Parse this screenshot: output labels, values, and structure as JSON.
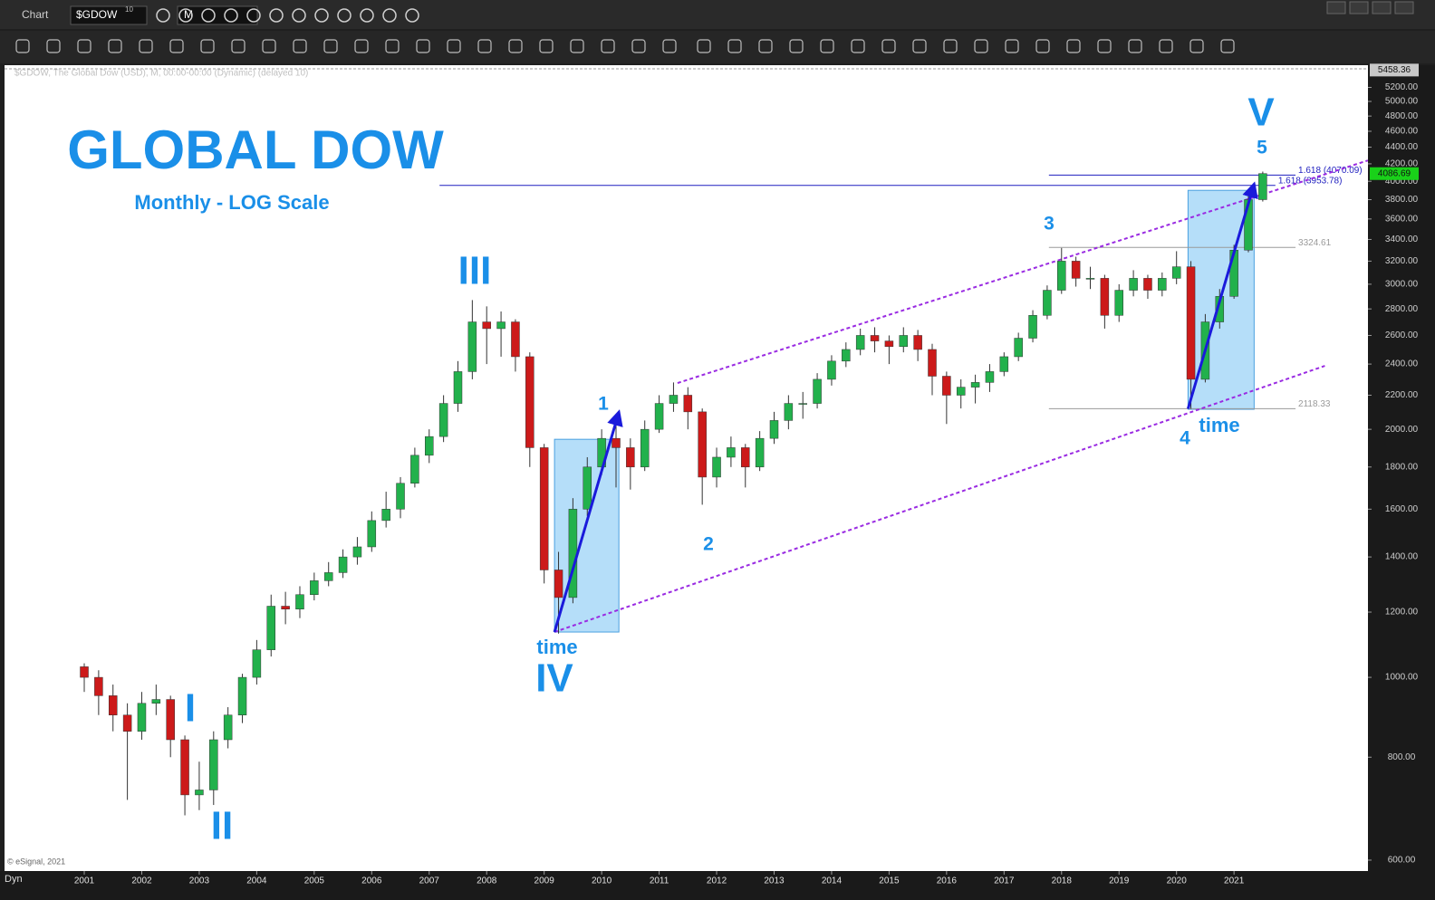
{
  "ui": {
    "window_title": "Chart",
    "symbol": "$GDOW",
    "symbol_badge": "10",
    "interval": "M",
    "status": "Dyn"
  },
  "chart_data": {
    "type": "candlestick",
    "title": "GLOBAL DOW",
    "subtitle": "Monthly - LOG Scale",
    "header": "$GDOW, The Global Dow (USD), M, 00:00-00:00 (Dynamic) (delayed 10)",
    "credit": "© eSignal, 2021",
    "log_scale": true,
    "grid": false,
    "up_color": "#22b14c",
    "down_color": "#cc1a1a",
    "xlim": [
      1999.613,
      2023.33
    ],
    "ylim": [
      582,
      5533
    ],
    "xticks": [
      2001,
      2002,
      2003,
      2004,
      2005,
      2006,
      2007,
      2008,
      2009,
      2010,
      2011,
      2012,
      2013,
      2014,
      2015,
      2016,
      2017,
      2018,
      2019,
      2020,
      2021
    ],
    "yticks": [
      {
        "value": 600,
        "label": "600.00"
      },
      {
        "value": 800,
        "label": "800.00"
      },
      {
        "value": 1000,
        "label": "1000.00"
      },
      {
        "value": 1200,
        "label": "1200.00"
      },
      {
        "value": 1400,
        "label": "1400.00"
      },
      {
        "value": 1600,
        "label": "1600.00"
      },
      {
        "value": 1800,
        "label": "1800.00"
      },
      {
        "value": 2000,
        "label": "2000.00"
      },
      {
        "value": 2200,
        "label": "2200.00"
      },
      {
        "value": 2400,
        "label": "2400.00"
      },
      {
        "value": 2600,
        "label": "2600.00"
      },
      {
        "value": 2800,
        "label": "2800.00"
      },
      {
        "value": 3000,
        "label": "3000.00"
      },
      {
        "value": 3200,
        "label": "3200.00"
      },
      {
        "value": 3400,
        "label": "3400.00"
      },
      {
        "value": 3600,
        "label": "3600.00"
      },
      {
        "value": 3800,
        "label": "3800.00"
      },
      {
        "value": 4000,
        "label": "4000.00"
      },
      {
        "value": 4200,
        "label": "4200.00"
      },
      {
        "value": 4400,
        "label": "4400.00"
      },
      {
        "value": 4600,
        "label": "4600.00"
      },
      {
        "value": 4800,
        "label": "4800.00"
      },
      {
        "value": 5000,
        "label": "5000.00"
      },
      {
        "value": 5200,
        "label": "5200.00"
      }
    ],
    "x": [
      2001,
      2001.25,
      2001.5,
      2001.75,
      2002,
      2002.25,
      2002.5,
      2002.75,
      2003,
      2003.25,
      2003.5,
      2003.75,
      2004,
      2004.25,
      2004.5,
      2004.75,
      2005,
      2005.25,
      2005.5,
      2005.75,
      2006,
      2006.25,
      2006.5,
      2006.75,
      2007,
      2007.25,
      2007.5,
      2007.75,
      2008,
      2008.25,
      2008.5,
      2008.75,
      2009,
      2009.25,
      2009.5,
      2009.75,
      2010,
      2010.25,
      2010.5,
      2010.75,
      2011,
      2011.25,
      2011.5,
      2011.75,
      2012,
      2012.25,
      2012.5,
      2012.75,
      2013,
      2013.25,
      2013.5,
      2013.75,
      2014,
      2014.25,
      2014.5,
      2014.75,
      2015,
      2015.25,
      2015.5,
      2015.75,
      2016,
      2016.25,
      2016.5,
      2016.75,
      2017,
      2017.25,
      2017.5,
      2017.75,
      2018,
      2018.25,
      2018.5,
      2018.75,
      2019,
      2019.25,
      2019.5,
      2019.75,
      2020,
      2020.25,
      2020.5,
      2020.75,
      2021,
      2021.25,
      2021.5
    ],
    "open": [
      1030,
      1000,
      950,
      900,
      860,
      930,
      940,
      840,
      720,
      730,
      840,
      900,
      1000,
      1080,
      1220,
      1210,
      1260,
      1310,
      1340,
      1400,
      1440,
      1550,
      1600,
      1720,
      1860,
      1960,
      2150,
      2350,
      2700,
      2650,
      2700,
      2450,
      1900,
      1350,
      1250,
      1600,
      1800,
      1950,
      1900,
      1800,
      2000,
      2150,
      2200,
      2100,
      1750,
      1850,
      1900,
      1800,
      1950,
      2050,
      2150,
      2150,
      2300,
      2420,
      2500,
      2600,
      2560,
      2520,
      2600,
      2500,
      2320,
      2200,
      2250,
      2280,
      2350,
      2450,
      2580,
      2750,
      2950,
      3200,
      3050,
      3050,
      2750,
      2950,
      3050,
      2950,
      3050,
      3150,
      2300,
      2700,
      2900,
      3300,
      3800
    ],
    "high": [
      1040,
      1020,
      980,
      930,
      960,
      980,
      950,
      850,
      790,
      860,
      920,
      1010,
      1110,
      1260,
      1270,
      1290,
      1340,
      1380,
      1430,
      1480,
      1590,
      1680,
      1750,
      1900,
      2000,
      2200,
      2420,
      2870,
      2820,
      2780,
      2720,
      2480,
      1920,
      1420,
      1650,
      1850,
      2000,
      2050,
      1950,
      2050,
      2200,
      2280,
      2250,
      2120,
      1900,
      1960,
      1920,
      1990,
      2100,
      2200,
      2220,
      2340,
      2460,
      2550,
      2650,
      2660,
      2600,
      2660,
      2640,
      2540,
      2350,
      2300,
      2330,
      2400,
      2480,
      2620,
      2790,
      2990,
      3320,
      3240,
      3150,
      3080,
      3000,
      3120,
      3080,
      3100,
      3290,
      3200,
      2760,
      2960,
      3350,
      3850,
      4110
    ],
    "low": [
      960,
      900,
      860,
      710,
      840,
      900,
      800,
      680,
      690,
      700,
      820,
      880,
      980,
      1060,
      1160,
      1180,
      1240,
      1290,
      1320,
      1370,
      1420,
      1520,
      1560,
      1700,
      1820,
      1930,
      2100,
      2300,
      2400,
      2450,
      2350,
      1800,
      1300,
      1130,
      1230,
      1570,
      1760,
      1700,
      1690,
      1780,
      1980,
      2100,
      2000,
      1620,
      1700,
      1800,
      1700,
      1780,
      1920,
      2000,
      2060,
      2120,
      2260,
      2380,
      2460,
      2480,
      2400,
      2480,
      2420,
      2200,
      2030,
      2120,
      2150,
      2220,
      2320,
      2420,
      2550,
      2720,
      2920,
      2980,
      2960,
      2650,
      2700,
      2900,
      2880,
      2900,
      3000,
      2118,
      2280,
      2650,
      2880,
      3280,
      3780
    ],
    "close": [
      1000,
      950,
      900,
      860,
      930,
      940,
      840,
      720,
      730,
      840,
      900,
      1000,
      1080,
      1220,
      1210,
      1260,
      1310,
      1340,
      1400,
      1440,
      1550,
      1600,
      1720,
      1860,
      1960,
      2150,
      2350,
      2700,
      2650,
      2700,
      2450,
      1900,
      1350,
      1250,
      1600,
      1800,
      1950,
      1900,
      1800,
      2000,
      2150,
      2200,
      2100,
      1750,
      1850,
      1900,
      1800,
      1950,
      2050,
      2150,
      2150,
      2300,
      2420,
      2500,
      2600,
      2560,
      2520,
      2600,
      2500,
      2320,
      2200,
      2250,
      2280,
      2350,
      2450,
      2580,
      2750,
      2950,
      3200,
      3050,
      3050,
      2750,
      2950,
      3050,
      2950,
      3050,
      3150,
      2300,
      2700,
      2900,
      3300,
      3800,
      4087
    ],
    "levels": [
      {
        "value": 4070.09,
        "label": "1.618 (4070.09)",
        "x": [
          2017.78,
          2022.07
        ],
        "color": "#1f1fbf"
      },
      {
        "value": 3953.78,
        "label": "1.618 (3953.78)",
        "x": [
          2007.18,
          2021.72
        ],
        "color": "#1f1fbf"
      },
      {
        "value": 3324.61,
        "label": "3324.61",
        "x": [
          2017.78,
          2022.07
        ],
        "color": "#9a9a9a"
      },
      {
        "value": 2118.33,
        "label": "2118.33",
        "x": [
          2017.78,
          2022.07
        ],
        "color": "#9a9a9a"
      }
    ],
    "price_markers": [
      {
        "value": 5458.36,
        "color": "#c8c8c8"
      },
      {
        "value": 4086.69,
        "color": "#19d119"
      }
    ],
    "channel": [
      {
        "x": [
          2011.32,
          2023.33
        ],
        "y": [
          2276,
          4240
        ]
      },
      {
        "x": [
          2009.18,
          2022.58
        ],
        "y": [
          1135,
          2388
        ]
      }
    ],
    "arrows": [
      {
        "x": [
          2009.18,
          2010.3
        ],
        "y": [
          1135,
          2099
        ]
      },
      {
        "x": [
          2020.2,
          2021.35
        ],
        "y": [
          2118,
          3970
        ]
      }
    ],
    "boxes": [
      {
        "x": [
          2009.18,
          2010.3
        ],
        "y": [
          1135,
          1945
        ]
      },
      {
        "x": [
          2020.2,
          2021.35
        ],
        "y": [
          2115,
          3900
        ]
      }
    ],
    "annotations": [
      "I",
      "II",
      "III",
      "IV",
      "V",
      "1",
      "2",
      "3",
      "4",
      "5",
      "time",
      "time"
    ]
  }
}
